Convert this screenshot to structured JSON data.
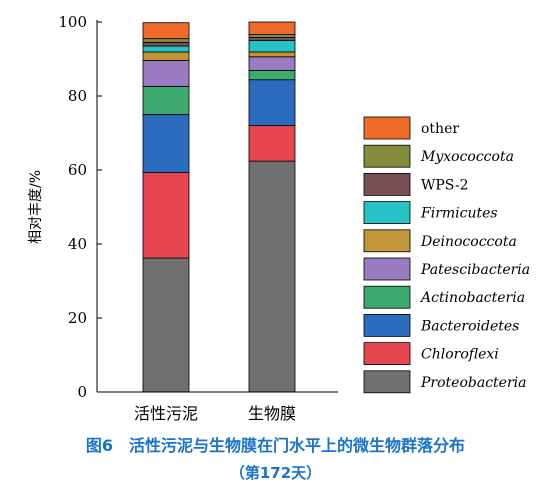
{
  "chart_data": {
    "type": "bar",
    "stacked": true,
    "ylabel": "相对丰度/%",
    "ylim": [
      0,
      100
    ],
    "yticks": [
      0,
      20,
      40,
      60,
      80,
      100
    ],
    "categories": [
      "活性污泥",
      "生物膜"
    ],
    "series": [
      {
        "name": "Proteobacteria",
        "color": "#707071",
        "italic": true,
        "values": [
          36.2,
          62.4
        ]
      },
      {
        "name": "Chloroflexi",
        "color": "#e8464f",
        "italic": true,
        "values": [
          23.1,
          9.6
        ]
      },
      {
        "name": "Bacteroidetes",
        "color": "#2b6cbf",
        "italic": true,
        "values": [
          15.7,
          12.4
        ]
      },
      {
        "name": "Actinobacteria",
        "color": "#3faa70",
        "italic": true,
        "values": [
          7.6,
          2.5
        ]
      },
      {
        "name": "Patescibacteria",
        "color": "#9a7bc2",
        "italic": true,
        "values": [
          7.0,
          3.7
        ]
      },
      {
        "name": "Deinococcota",
        "color": "#c39737",
        "italic": true,
        "values": [
          2.3,
          1.3
        ]
      },
      {
        "name": "Firmicutes",
        "color": "#27c2c5",
        "italic": true,
        "values": [
          1.6,
          3.1
        ]
      },
      {
        "name": "WPS-2",
        "color": "#7a4f53",
        "italic": false,
        "values": [
          1.0,
          0.8
        ]
      },
      {
        "name": "Myxococcota",
        "color": "#838b3c",
        "italic": true,
        "values": [
          1.0,
          0.8
        ]
      },
      {
        "name": "other",
        "color": "#f06a2a",
        "italic": false,
        "values": [
          4.3,
          3.4
        ]
      }
    ],
    "legend_position": "right"
  },
  "caption": {
    "main": "图6　活性污泥与生物膜在门水平上的微生物群落分布",
    "sub": "（第172天）"
  }
}
